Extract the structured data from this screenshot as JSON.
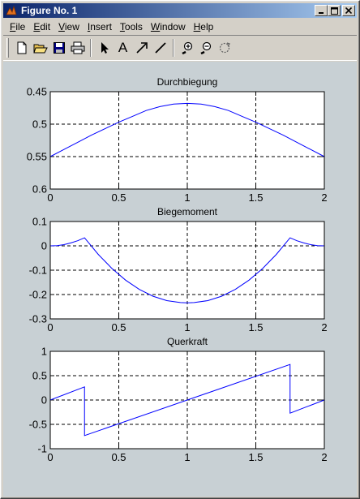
{
  "window": {
    "title": "Figure No. 1"
  },
  "menu": [
    {
      "name": "file",
      "label": "File",
      "u": "F",
      "rest": "ile"
    },
    {
      "name": "edit",
      "label": "Edit",
      "u": "E",
      "rest": "dit"
    },
    {
      "name": "view",
      "label": "View",
      "u": "V",
      "rest": "iew"
    },
    {
      "name": "insert",
      "label": "Insert",
      "u": "I",
      "rest": "nsert"
    },
    {
      "name": "tools",
      "label": "Tools",
      "u": "T",
      "rest": "ools"
    },
    {
      "name": "window",
      "label": "Window",
      "u": "W",
      "rest": "indow"
    },
    {
      "name": "help",
      "label": "Help",
      "u": "H",
      "rest": "elp"
    }
  ],
  "toolbar": {
    "icons": [
      "new-file-icon",
      "open-folder-icon",
      "save-icon",
      "print-icon",
      "select-arrow-icon",
      "insert-text-icon",
      "insert-arrow-icon",
      "insert-line-icon",
      "zoom-in-icon",
      "zoom-out-icon",
      "rotate-icon"
    ],
    "text_tool_glyph": "A"
  },
  "chart_data": [
    {
      "type": "line",
      "title": "Durchbiegung",
      "xlim": [
        0,
        2
      ],
      "ylim": [
        0.45,
        0.6
      ],
      "y_reversed": true,
      "xticks": [
        "0",
        "0.5",
        "1",
        "1.5",
        "2"
      ],
      "yticks": [
        "0.45",
        "0.5",
        "0.55",
        "0.6"
      ],
      "grid": true,
      "color": "#0000ff",
      "series": [
        {
          "x": [
            0,
            0.1,
            0.2,
            0.3,
            0.4,
            0.5,
            0.6,
            0.7,
            0.8,
            0.9,
            1.0,
            1.1,
            1.2,
            1.3,
            1.4,
            1.5,
            1.6,
            1.7,
            1.8,
            1.9,
            2.0
          ],
          "y": [
            0.55,
            0.539,
            0.528,
            0.517,
            0.507,
            0.497,
            0.488,
            0.479,
            0.473,
            0.469,
            0.468,
            0.469,
            0.473,
            0.479,
            0.488,
            0.497,
            0.507,
            0.517,
            0.528,
            0.539,
            0.55
          ]
        }
      ]
    },
    {
      "type": "line",
      "title": "Biegemoment",
      "xlim": [
        0,
        2
      ],
      "ylim": [
        -0.3,
        0.1
      ],
      "xticks": [
        "0",
        "0.5",
        "1",
        "1.5",
        "2"
      ],
      "yticks": [
        "0.1",
        "0",
        "-0.1",
        "-0.2",
        "-0.3"
      ],
      "grid": true,
      "color": "#0000ff",
      "series": [
        {
          "x": [
            0,
            0.05,
            0.1,
            0.15,
            0.2,
            0.25,
            0.35,
            0.45,
            0.55,
            0.65,
            0.75,
            0.85,
            0.95,
            1.0,
            1.05,
            1.15,
            1.25,
            1.35,
            1.45,
            1.55,
            1.65,
            1.75,
            1.8,
            1.85,
            1.9,
            1.95,
            2.0
          ],
          "y": [
            0,
            0.001,
            0.005,
            0.012,
            0.021,
            0.033,
            -0.035,
            -0.093,
            -0.141,
            -0.179,
            -0.207,
            -0.225,
            -0.233,
            -0.234,
            -0.233,
            -0.225,
            -0.207,
            -0.179,
            -0.141,
            -0.093,
            -0.035,
            0.033,
            0.021,
            0.012,
            0.005,
            0.001,
            0
          ]
        }
      ]
    },
    {
      "type": "line",
      "title": "Querkraft",
      "xlim": [
        0,
        2
      ],
      "ylim": [
        -1,
        1
      ],
      "xticks": [
        "0",
        "0.5",
        "1",
        "1.5",
        "2"
      ],
      "yticks": [
        "1",
        "0.5",
        "0",
        "-0.5",
        "-1"
      ],
      "grid": true,
      "color": "#0000ff",
      "series": [
        {
          "x": [
            0,
            0.25,
            0.25,
            1.75,
            1.75,
            2.0
          ],
          "y": [
            0,
            0.27,
            -0.73,
            0.73,
            -0.27,
            0
          ]
        }
      ]
    }
  ]
}
